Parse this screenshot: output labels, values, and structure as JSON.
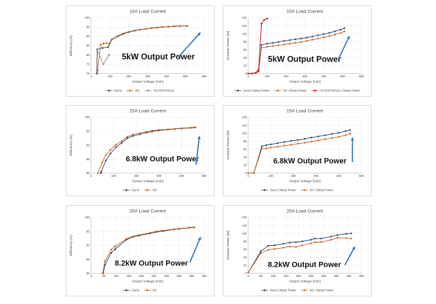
{
  "figure": {
    "background": "#ffffff"
  },
  "style": {
    "grid_color": "#dcdcdc",
    "axis_color": "#a6a6a6",
    "text_color": "#3f3f3f",
    "annotation_color": "#111111",
    "arrow_color": "#2E75B6",
    "gaas_color": "#1F3864",
    "sic_color": "#C55A11",
    "diode_gray_color": "#7F7F7F",
    "diode_red_color": "#C00000"
  },
  "chart_data": [
    {
      "type": "line",
      "title": "10A Load Current",
      "xlabel": "Output Voltage [Vdc]",
      "ylabel": "Efficiency (%)",
      "xlim": [
        0,
        600
      ],
      "xstep": 100,
      "ylim": [
        70,
        100
      ],
      "ystep": 5,
      "grid": true,
      "legend_position": "bottom",
      "series": [
        {
          "name": "GaAs",
          "color": "#1F3864",
          "x": [
            30,
            32,
            60,
            90,
            110,
            140,
            170,
            200,
            230,
            260,
            290,
            320,
            350,
            380,
            410,
            440,
            470,
            510
          ],
          "y": [
            70,
            83,
            83.8,
            84.2,
            88.3,
            90,
            91.3,
            92.3,
            93,
            93.6,
            94,
            94.4,
            94.7,
            95,
            95.2,
            95.4,
            95.5,
            95.6
          ]
        },
        {
          "name": "SiC",
          "color": "#C55A11",
          "x": [
            33,
            35,
            50,
            65,
            80,
            95,
            110,
            140,
            170,
            200,
            230,
            260,
            290,
            320,
            350,
            380,
            410,
            440,
            470,
            510
          ],
          "y": [
            70,
            72,
            85.5,
            86.2,
            86.4,
            86,
            88.5,
            90.2,
            91.6,
            92.5,
            93.2,
            93.7,
            94.1,
            94.5,
            94.8,
            95.1,
            95.3,
            95.5,
            95.6,
            95.7
          ]
        },
        {
          "name": "VS-E5PH3012L",
          "color": "#7F7F7F",
          "x": [
            30,
            65,
            95
          ],
          "y": [
            83,
            75,
            80
          ]
        }
      ],
      "annotation": {
        "text": "5kW Output Power",
        "x": 134,
        "y": 78,
        "size": 12
      },
      "arrow": {
        "x1": 163,
        "y1": 75,
        "x2": 196,
        "y2": 38
      }
    },
    {
      "type": "line",
      "title": "10A Load Current",
      "xlabel": "Output Voltage [Vdc]",
      "ylabel": "Snubber Power [W]",
      "xlim": [
        0,
        600
      ],
      "xstep": 100,
      "ylim": [
        0,
        140
      ],
      "ystep": 20,
      "grid": true,
      "legend_position": "bottom",
      "series": [
        {
          "name": "GaAs Clamp Power",
          "color": "#1F3864",
          "x": [
            0,
            20,
            40,
            55,
            70,
            100,
            130,
            160,
            190,
            220,
            250,
            280,
            310,
            340,
            370,
            400,
            430,
            460,
            490,
            510
          ],
          "y": [
            0,
            0,
            2,
            6,
            72,
            75,
            77,
            79,
            82,
            84,
            86,
            88,
            90,
            93,
            96,
            99,
            102,
            106,
            110,
            114
          ]
        },
        {
          "name": "SiC Clamp Power",
          "color": "#C55A11",
          "x": [
            0,
            20,
            40,
            55,
            70,
            100,
            130,
            160,
            190,
            220,
            250,
            280,
            310,
            340,
            370,
            400,
            430,
            460,
            490,
            510
          ],
          "y": [
            0,
            0,
            2,
            5,
            65,
            67,
            69,
            71,
            73,
            75,
            77,
            79,
            82,
            85,
            88,
            91,
            94,
            98,
            102,
            106
          ]
        },
        {
          "name": "VS-E5PH3012L Clamp Power",
          "color": "#C00000",
          "x": [
            0,
            20,
            40,
            55,
            70,
            85,
            100
          ],
          "y": [
            0,
            0,
            2,
            10,
            125,
            135,
            138
          ]
        }
      ],
      "annotation": {
        "text": "5kW Output Power",
        "x": 118,
        "y": 82,
        "size": 12
      },
      "arrow": {
        "x1": 167,
        "y1": 79,
        "x2": 184,
        "y2": 43
      }
    },
    {
      "type": "line",
      "title": "15A Load Current",
      "xlabel": "Output Voltage [Vdc]",
      "ylabel": "Efficiency (%)",
      "xlim": [
        0,
        500
      ],
      "xstep": 100,
      "ylim": [
        80,
        100
      ],
      "ystep": 5,
      "grid": true,
      "legend_position": "bottom",
      "series": [
        {
          "name": "GaAs",
          "color": "#1F3864",
          "x": [
            43,
            45,
            65,
            85,
            110,
            135,
            160,
            185,
            215,
            245,
            270,
            300,
            340,
            370,
            400,
            440,
            460
          ],
          "y": [
            80,
            80.5,
            84.5,
            87,
            89.3,
            90.8,
            92.5,
            93.3,
            93.9,
            94.5,
            94.9,
            95.3,
            95.6,
            95.8,
            96,
            96.2,
            96.3
          ]
        },
        {
          "name": "SiC",
          "color": "#C55A11",
          "x": [
            30,
            50,
            65,
            85,
            110,
            135,
            160,
            185,
            215,
            245,
            270,
            300,
            340,
            370,
            400,
            440,
            460
          ],
          "y": [
            80,
            84,
            86.5,
            88.3,
            90.2,
            91.5,
            93,
            93.8,
            94.3,
            94.8,
            95.2,
            95.5,
            95.7,
            95.9,
            96.1,
            96.3,
            96.5
          ]
        }
      ],
      "annotation": {
        "text": "6.8kW Output Power",
        "x": 140,
        "y": 82,
        "size": 11
      },
      "arrow": {
        "x1": 189,
        "y1": 87,
        "x2": 194,
        "y2": 44
      }
    },
    {
      "type": "line",
      "title": "15A Load Current",
      "xlabel": "Output Voltage [Vdc]",
      "ylabel": "Snubber Power [W]",
      "xlim": [
        0,
        500
      ],
      "xstep": 100,
      "ylim": [
        0,
        140
      ],
      "ystep": 20,
      "grid": true,
      "legend_position": "bottom",
      "series": [
        {
          "name": "GaAs Clamp Power",
          "color": "#1F3864",
          "x": [
            0,
            25,
            60,
            80,
            100,
            130,
            160,
            190,
            220,
            250,
            280,
            310,
            340,
            370,
            400,
            430,
            450
          ],
          "y": [
            0,
            0,
            67,
            70,
            72,
            75,
            78,
            81,
            83,
            86,
            89,
            92,
            95,
            98,
            101,
            105,
            108
          ]
        },
        {
          "name": "SiC Clamp Power",
          "color": "#C55A11",
          "x": [
            0,
            25,
            60,
            80,
            100,
            130,
            160,
            190,
            220,
            250,
            280,
            310,
            340,
            370,
            400,
            430,
            450
          ],
          "y": [
            0,
            0,
            61,
            62,
            64,
            66,
            69,
            71,
            74,
            76,
            79,
            82,
            85,
            88,
            91,
            95,
            99
          ]
        }
      ],
      "annotation": {
        "text": "6.8kW Output Power",
        "x": 126,
        "y": 85,
        "size": 11
      },
      "arrow": {
        "x1": 188,
        "y1": 83,
        "x2": 188,
        "y2": 46
      }
    },
    {
      "type": "line",
      "title": "20A Load Current",
      "xlabel": "Output Voltage [Vdc]",
      "ylabel": "Efficiency (%)",
      "xlim": [
        0,
        450
      ],
      "xstep": 50,
      "ylim": [
        80,
        100
      ],
      "ystep": 5,
      "grid": true,
      "legend_position": "bottom",
      "series": [
        {
          "name": "GaAs",
          "color": "#1F3864",
          "x": [
            48,
            55,
            80,
            95,
            140,
            165,
            190,
            235,
            260,
            285,
            330,
            350,
            390,
            410
          ],
          "y": [
            80,
            83,
            87.3,
            88.6,
            92,
            93,
            93.5,
            94.3,
            94.8,
            95.1,
            95.7,
            95.9,
            96.3,
            96.4
          ]
        },
        {
          "name": "SiC",
          "color": "#C55A11",
          "x": [
            46,
            55,
            80,
            95,
            140,
            165,
            190,
            235,
            260,
            285,
            330,
            350,
            390,
            410
          ],
          "y": [
            80,
            84.3,
            88.5,
            89.6,
            92.3,
            93.2,
            93.7,
            94.5,
            95,
            95.3,
            95.8,
            96,
            96.4,
            96.5
          ]
        }
      ],
      "annotation": {
        "text": "8.2kW Output Power",
        "x": 124,
        "y": 88,
        "size": 11
      },
      "arrow": {
        "x1": 180,
        "y1": 83,
        "x2": 196,
        "y2": 45
      }
    },
    {
      "type": "line",
      "title": "20A Load Current",
      "xlabel": "Output Voltage [Vdc]",
      "ylabel": "Snubber Power [W]",
      "xlim": [
        0,
        450
      ],
      "xstep": 50,
      "ylim": [
        0,
        140
      ],
      "ystep": 20,
      "grid": true,
      "legend_position": "bottom",
      "series": [
        {
          "name": "GaAs Clamp Power",
          "color": "#1F3864",
          "x": [
            0,
            50,
            80,
            105,
            140,
            165,
            190,
            215,
            250,
            265,
            290,
            330,
            355,
            390,
            410
          ],
          "y": [
            2,
            55,
            69,
            70,
            74,
            77,
            78,
            80,
            84,
            87,
            87,
            92,
            96,
            99,
            100
          ]
        },
        {
          "name": "SiC Clamp Power",
          "color": "#C55A11",
          "x": [
            0,
            50,
            80,
            105,
            140,
            165,
            190,
            215,
            250,
            265,
            290,
            330,
            355,
            390,
            410
          ],
          "y": [
            2,
            50,
            59,
            61,
            64,
            67,
            66,
            70,
            75,
            78,
            78,
            84,
            89,
            88,
            87
          ]
        }
      ],
      "annotation": {
        "text": "8.2kW Output Power",
        "x": 118,
        "y": 90,
        "size": 11
      },
      "arrow": {
        "x1": 177,
        "y1": 87,
        "x2": 192,
        "y2": 59
      }
    }
  ]
}
